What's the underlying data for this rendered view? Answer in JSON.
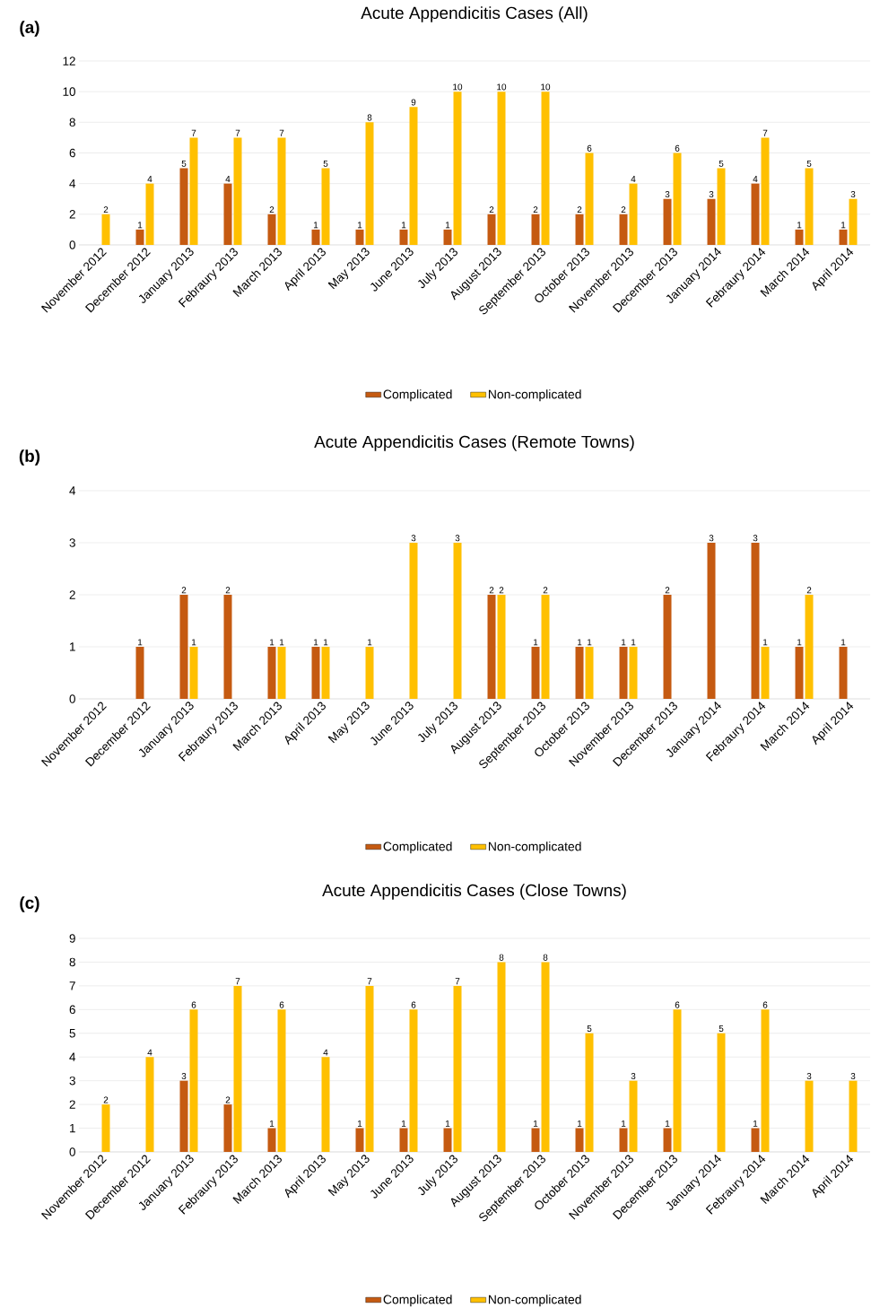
{
  "chart_data": [
    {
      "type": "bar",
      "title": "Acute Appendicitis Cases (All)",
      "annotations": [
        "(a)"
      ],
      "categories": [
        "November 2012",
        "December 2012",
        "January 2013",
        "Febraury 2013",
        "March 2013",
        "April 2013",
        "May 2013",
        "June 2013",
        "July 2013",
        "August 2013",
        "September 2013",
        "October 2013",
        "November 2013",
        "December 2013",
        "January 2014",
        "Febraury 2014",
        "March 2014",
        "April 2014"
      ],
      "series": [
        {
          "name": "Complicated",
          "color": "#c55a11",
          "values": [
            null,
            1,
            5,
            4,
            2,
            1,
            1,
            1,
            1,
            2,
            2,
            2,
            2,
            3,
            3,
            4,
            1,
            1
          ]
        },
        {
          "name": "Non-complicated",
          "color": "#ffc000",
          "values": [
            2,
            4,
            7,
            7,
            7,
            5,
            8,
            9,
            10,
            10,
            10,
            6,
            4,
            6,
            5,
            7,
            5,
            3
          ]
        }
      ],
      "ylim": [
        0,
        12
      ],
      "yticks": [
        0,
        2,
        4,
        6,
        8,
        10,
        12
      ],
      "grid": "y",
      "legend": "bottom",
      "data_labels": true
    },
    {
      "type": "bar",
      "title": "Acute Appendicitis Cases (Remote Towns)",
      "annotations": [
        "(b)"
      ],
      "categories": [
        "November 2012",
        "December 2012",
        "January 2013",
        "Febraury 2013",
        "March 2013",
        "April 2013",
        "May 2013",
        "June 2013",
        "July 2013",
        "August 2013",
        "September 2013",
        "October 2013",
        "November 2013",
        "December 2013",
        "January 2014",
        "Febraury 2014",
        "March 2014",
        "April 2014"
      ],
      "series": [
        {
          "name": "Complicated",
          "color": "#c55a11",
          "values": [
            null,
            1,
            2,
            2,
            1,
            1,
            null,
            null,
            null,
            2,
            1,
            1,
            1,
            2,
            3,
            3,
            1,
            1
          ]
        },
        {
          "name": "Non-complicated",
          "color": "#ffc000",
          "values": [
            null,
            null,
            1,
            null,
            1,
            1,
            1,
            3,
            3,
            2,
            2,
            1,
            1,
            null,
            null,
            1,
            2,
            null
          ]
        }
      ],
      "ylim": [
        0,
        4
      ],
      "yticks": [
        0,
        1,
        2,
        3,
        4
      ],
      "grid": "y",
      "legend": "bottom",
      "data_labels": true
    },
    {
      "type": "bar",
      "title": "Acute Appendicitis Cases (Close Towns)",
      "annotations": [
        "(c)"
      ],
      "categories": [
        "November 2012",
        "December 2012",
        "January 2013",
        "Febraury 2013",
        "March 2013",
        "April 2013",
        "May 2013",
        "June 2013",
        "July 2013",
        "August 2013",
        "September 2013",
        "October 2013",
        "November 2013",
        "December 2013",
        "January 2014",
        "Febraury 2014",
        "March 2014",
        "April 2014"
      ],
      "series": [
        {
          "name": "Complicated",
          "color": "#c55a11",
          "values": [
            null,
            null,
            3,
            2,
            1,
            null,
            1,
            1,
            1,
            null,
            1,
            1,
            1,
            1,
            null,
            1,
            null,
            null
          ]
        },
        {
          "name": "Non-complicated",
          "color": "#ffc000",
          "values": [
            2,
            4,
            6,
            7,
            6,
            4,
            7,
            6,
            7,
            8,
            8,
            5,
            3,
            6,
            5,
            6,
            3,
            3
          ]
        }
      ],
      "ylim": [
        0,
        9
      ],
      "yticks": [
        0,
        1,
        2,
        3,
        4,
        5,
        6,
        7,
        8,
        9
      ],
      "grid": "y",
      "legend": "bottom",
      "data_labels": true
    }
  ]
}
